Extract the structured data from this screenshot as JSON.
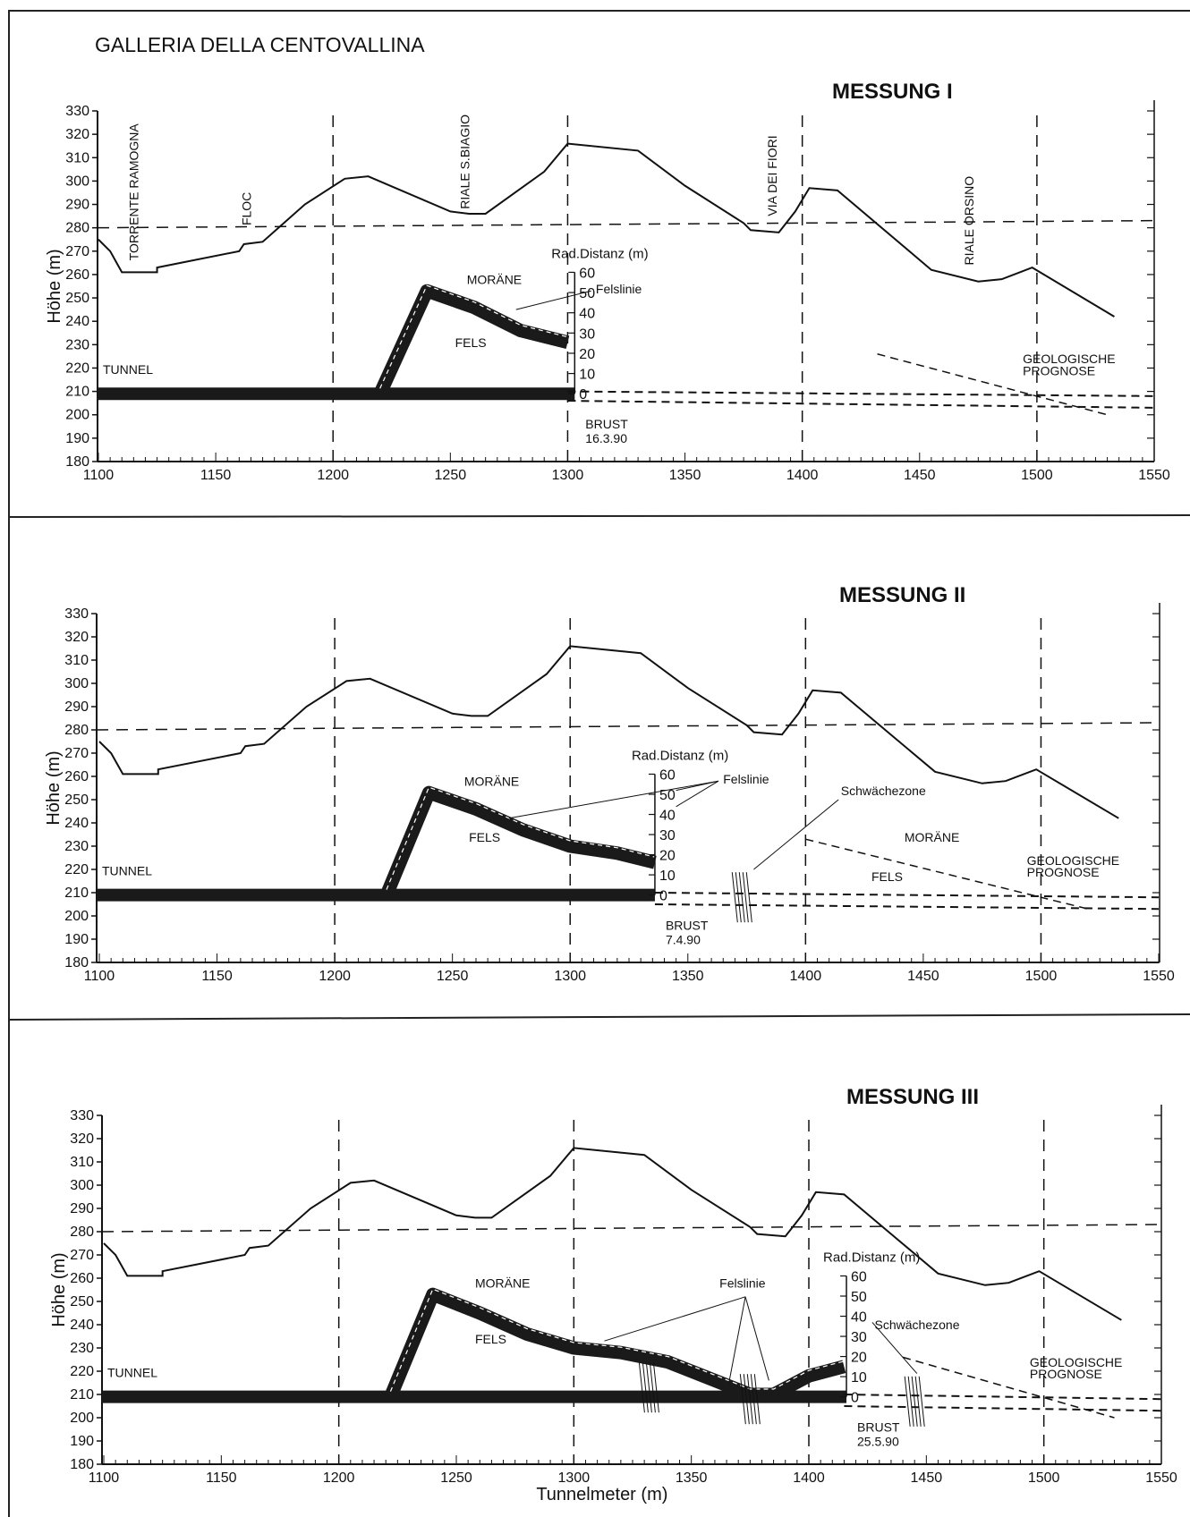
{
  "page_title": "GALLERIA DELLA CENTOVALLINA",
  "chart_data": [
    {
      "type": "line",
      "title": "MESSUNG I",
      "xlabel": "",
      "ylabel": "Höhe (m)",
      "xlim": [
        1100,
        1550
      ],
      "ylim": [
        180,
        330
      ],
      "x_ticks": [
        1100,
        1150,
        1200,
        1250,
        1300,
        1350,
        1400,
        1450,
        1500,
        1550
      ],
      "y_ticks": [
        180,
        190,
        200,
        210,
        220,
        230,
        240,
        250,
        260,
        270,
        280,
        290,
        300,
        310,
        320,
        330
      ],
      "grid_x": [
        1200,
        1300,
        1400,
        1500
      ],
      "reference_y": 280,
      "terrain": {
        "x": [
          1100,
          1105,
          1110,
          1125,
          1125,
          1160,
          1162,
          1170,
          1188,
          1205,
          1215,
          1250,
          1258,
          1265,
          1290,
          1300,
          1330,
          1350,
          1375,
          1378,
          1390,
          1397,
          1403,
          1415,
          1435,
          1455,
          1475,
          1485,
          1498,
          1533
        ],
        "y": [
          275,
          270,
          261,
          261,
          263,
          270,
          273,
          274,
          290,
          301,
          302,
          287,
          286,
          286,
          304,
          316,
          313,
          298,
          282,
          279,
          278,
          287,
          297,
          296,
          279,
          262,
          257,
          258,
          263,
          242
        ]
      },
      "tunnel_y": 209,
      "rock_line": {
        "x": [
          1220,
          1240,
          1260,
          1280,
          1300
        ],
        "y": [
          209,
          253,
          246,
          236,
          231
        ]
      },
      "prognosis": {
        "upper": [
          [
            1300,
            210
          ],
          [
            1550,
            208
          ]
        ],
        "lower": [
          [
            1300,
            206
          ],
          [
            1550,
            203
          ]
        ],
        "diagonal": [
          [
            1432,
            226
          ],
          [
            1530,
            200
          ]
        ]
      },
      "radial_scale": {
        "position": 1303,
        "ticks": [
          "60",
          "50",
          "40",
          "30",
          "20",
          "10",
          "0"
        ],
        "title": "Rad.Distanz (m)"
      },
      "x_tick_labels": [
        "1100",
        "1150",
        "1200",
        "1250",
        "1300",
        "1350",
        "1400",
        "1450",
        "1500",
        "1550"
      ],
      "annotations": {
        "torrente": "TORRENTE RAMOGNA",
        "floc": "FLOC",
        "riale_biagio": "RIALE S.BIAGIO",
        "via_fiori": "VIA DEI FIORI",
        "riale_orsino": "RIALE ORSINO",
        "morane": "MORÄNE",
        "fels": "FELS",
        "felslinie": "Felslinie",
        "tunnel": "TUNNEL",
        "brust": "BRUST",
        "brust_date": "16.3.90",
        "geo1": "GEOLOGISCHE",
        "geo2": "PROGNOSE"
      }
    },
    {
      "type": "line",
      "title": "MESSUNG II",
      "xlabel": "",
      "ylabel": "Höhe (m)",
      "xlim": [
        1100,
        1550
      ],
      "ylim": [
        180,
        330
      ],
      "x_ticks": [
        1100,
        1150,
        1200,
        1250,
        1300,
        1350,
        1400,
        1450,
        1500,
        1550
      ],
      "y_ticks": [
        180,
        190,
        200,
        210,
        220,
        230,
        240,
        250,
        260,
        270,
        280,
        290,
        300,
        310,
        320,
        330
      ],
      "grid_x": [
        1200,
        1300,
        1400,
        1500
      ],
      "reference_y": 280,
      "terrain": {
        "x": [
          1100,
          1105,
          1110,
          1125,
          1125,
          1160,
          1162,
          1170,
          1188,
          1205,
          1215,
          1250,
          1258,
          1265,
          1290,
          1300,
          1330,
          1350,
          1375,
          1378,
          1390,
          1397,
          1403,
          1415,
          1435,
          1455,
          1475,
          1485,
          1498,
          1533
        ],
        "y": [
          275,
          270,
          261,
          261,
          263,
          270,
          273,
          274,
          290,
          301,
          302,
          287,
          286,
          286,
          304,
          316,
          313,
          298,
          282,
          279,
          278,
          287,
          297,
          296,
          279,
          262,
          257,
          258,
          263,
          242
        ]
      },
      "tunnel_y": 209,
      "rock_line": {
        "x": [
          1222,
          1240,
          1260,
          1280,
          1300,
          1320,
          1336
        ],
        "y": [
          209,
          253,
          246,
          237,
          230,
          227,
          223
        ]
      },
      "prognosis": {
        "upper": [
          [
            1336,
            210
          ],
          [
            1550,
            208
          ]
        ],
        "lower": [
          [
            1336,
            205
          ],
          [
            1550,
            203
          ]
        ],
        "diagonal": [
          [
            1400,
            233
          ],
          [
            1520,
            203
          ]
        ]
      },
      "radial_scale": {
        "position": 1336,
        "ticks": [
          "60",
          "50",
          "40",
          "30",
          "20",
          "10",
          "0"
        ],
        "title": "Rad.Distanz (m)"
      },
      "x_tick_labels": [
        "1100",
        "1150",
        "1200",
        "1250",
        "1300",
        "1350",
        "1400",
        "1450",
        "1500",
        "1550"
      ],
      "weakness_zones": [
        [
          1373,
          208
        ]
      ],
      "annotations": {
        "morane": "MORÄNE",
        "morane2": "MORÄNE",
        "fels": "FELS",
        "fels2": "FELS",
        "felslinie": "Felslinie",
        "schwache": "Schwächezone",
        "tunnel": "TUNNEL",
        "brust": "BRUST",
        "brust_date": "7.4.90",
        "geo1": "GEOLOGISCHE",
        "geo2": "PROGNOSE"
      }
    },
    {
      "type": "line",
      "title": "MESSUNG III",
      "xlabel": "Tunnelmeter (m)",
      "ylabel": "Höhe (m)",
      "xlim": [
        1100,
        1550
      ],
      "ylim": [
        180,
        330
      ],
      "x_ticks": [
        1100,
        1150,
        1200,
        1250,
        1300,
        1350,
        1400,
        1450,
        1500,
        1550
      ],
      "y_ticks": [
        180,
        190,
        200,
        210,
        220,
        230,
        240,
        250,
        260,
        270,
        280,
        290,
        300,
        310,
        320,
        330
      ],
      "grid_x": [
        1200,
        1300,
        1400,
        1500
      ],
      "reference_y": 280,
      "terrain": {
        "x": [
          1100,
          1105,
          1110,
          1125,
          1125,
          1160,
          1162,
          1170,
          1188,
          1205,
          1215,
          1250,
          1258,
          1265,
          1290,
          1300,
          1330,
          1350,
          1375,
          1378,
          1390,
          1397,
          1403,
          1415,
          1435,
          1455,
          1475,
          1485,
          1498,
          1533
        ],
        "y": [
          275,
          270,
          261,
          261,
          263,
          270,
          273,
          274,
          290,
          301,
          302,
          287,
          286,
          286,
          304,
          316,
          313,
          298,
          282,
          279,
          278,
          287,
          297,
          296,
          279,
          262,
          257,
          258,
          263,
          242
        ]
      },
      "tunnel_y": 209,
      "rock_line": {
        "x": [
          1222,
          1240,
          1260,
          1280,
          1300,
          1320,
          1340,
          1360,
          1375,
          1385,
          1400,
          1415
        ],
        "y": [
          209,
          253,
          245,
          236,
          230,
          228,
          224,
          216,
          210,
          210,
          218,
          222
        ]
      },
      "prognosis": {
        "upper": [
          [
            1415,
            210
          ],
          [
            1550,
            208
          ]
        ],
        "lower": [
          [
            1415,
            205
          ],
          [
            1550,
            203
          ]
        ],
        "diagonal": [
          [
            1440,
            226
          ],
          [
            1530,
            200
          ]
        ]
      },
      "radial_scale": {
        "position": 1416,
        "ticks": [
          "60",
          "50",
          "40",
          "30",
          "20",
          "10",
          "0"
        ],
        "title": "Rad.Distanz (m)"
      },
      "x_tick_labels": [
        "1100",
        "1150",
        "1200",
        "1250",
        "1300",
        "1350",
        "1400",
        "1450",
        "1500",
        "1550"
      ],
      "weakness_zones": [
        [
          1332,
          213
        ],
        [
          1375,
          208
        ],
        [
          1445,
          207
        ]
      ],
      "annotations": {
        "morane": "MORÄNE",
        "fels": "FELS",
        "felslinie": "Felslinie",
        "schwache": "Schwächezone",
        "tunnel": "TUNNEL",
        "brust": "BRUST",
        "brust_date": "25.5.90",
        "geo1": "GEOLOGISCHE",
        "geo2": "PROGNOSE"
      }
    }
  ]
}
